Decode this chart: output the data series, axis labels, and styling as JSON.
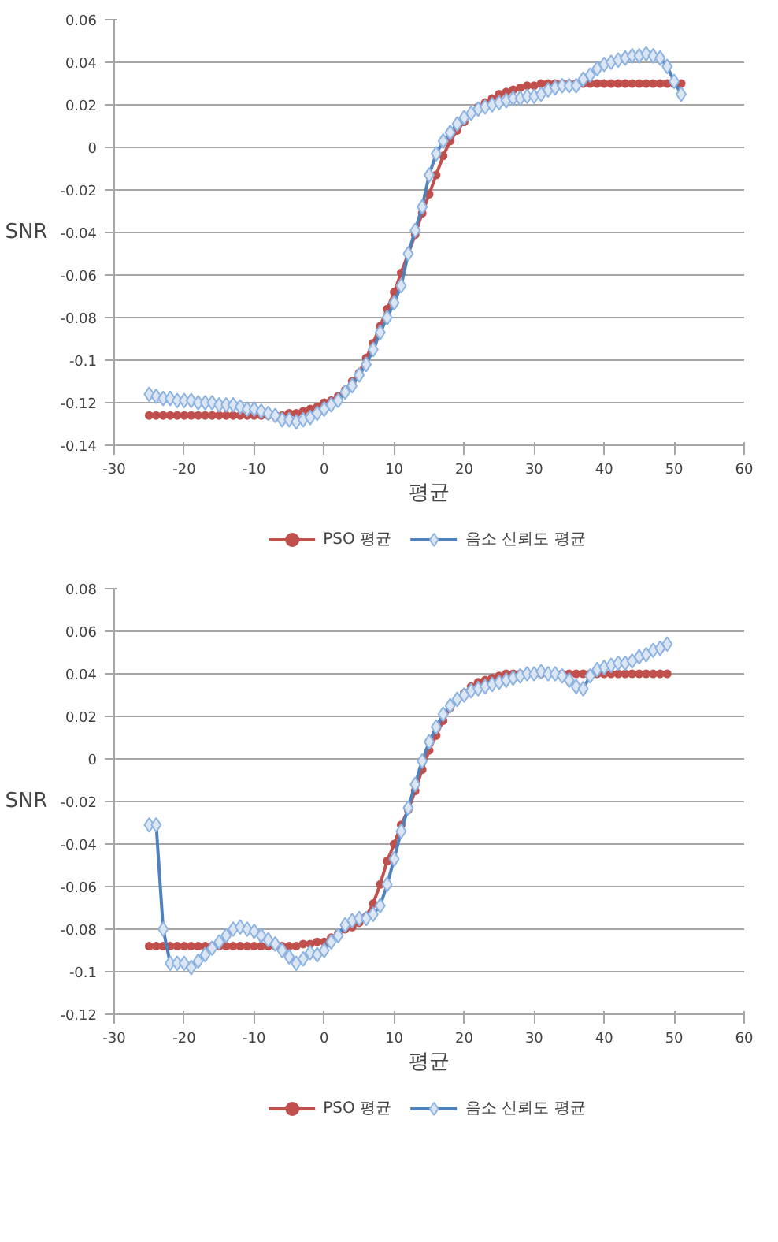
{
  "chart_data": [
    {
      "type": "line",
      "xlabel": "평균",
      "ylabel": "SNR",
      "xlim": [
        -30,
        60
      ],
      "ylim": [
        -0.14,
        0.06
      ],
      "xticks": [
        -30,
        -20,
        -10,
        0,
        10,
        20,
        30,
        40,
        50,
        60
      ],
      "yticks": [
        -0.14,
        -0.12,
        -0.1,
        -0.08,
        -0.06,
        -0.04,
        -0.02,
        0,
        0.02,
        0.04,
        0.06
      ],
      "grid": "y",
      "legend": "bottom",
      "x": [
        -25,
        -24,
        -23,
        -22,
        -21,
        -20,
        -19,
        -18,
        -17,
        -16,
        -15,
        -14,
        -13,
        -12,
        -11,
        -10,
        -9,
        -8,
        -7,
        -6,
        -5,
        -4,
        -3,
        -2,
        -1,
        0,
        1,
        2,
        3,
        4,
        5,
        6,
        7,
        8,
        9,
        10,
        11,
        12,
        13,
        14,
        15,
        16,
        17,
        18,
        19,
        20,
        21,
        22,
        23,
        24,
        25,
        26,
        27,
        28,
        29,
        30,
        31,
        32,
        33,
        34,
        35,
        36,
        37,
        38,
        39,
        40,
        41,
        42,
        43,
        44,
        45,
        46,
        47,
        48,
        49,
        50,
        51
      ],
      "series": [
        {
          "name": "PSO 평균",
          "color": "#c0504d",
          "marker": "circle",
          "values": [
            -0.126,
            -0.126,
            -0.126,
            -0.126,
            -0.126,
            -0.126,
            -0.126,
            -0.126,
            -0.126,
            -0.126,
            -0.126,
            -0.126,
            -0.126,
            -0.126,
            -0.126,
            -0.126,
            -0.126,
            -0.126,
            -0.126,
            -0.126,
            -0.125,
            -0.125,
            -0.124,
            -0.123,
            -0.122,
            -0.12,
            -0.119,
            -0.117,
            -0.114,
            -0.11,
            -0.106,
            -0.099,
            -0.092,
            -0.084,
            -0.076,
            -0.068,
            -0.059,
            -0.05,
            -0.041,
            -0.031,
            -0.022,
            -0.013,
            -0.004,
            0.003,
            0.008,
            0.012,
            0.016,
            0.019,
            0.021,
            0.023,
            0.025,
            0.026,
            0.027,
            0.028,
            0.029,
            0.029,
            0.03,
            0.03,
            0.03,
            0.03,
            0.03,
            0.03,
            0.03,
            0.03,
            0.03,
            0.03,
            0.03,
            0.03,
            0.03,
            0.03,
            0.03,
            0.03,
            0.03,
            0.03,
            0.03,
            0.03,
            0.03
          ]
        },
        {
          "name": "음소 신뢰도 평균",
          "color": "#4f81bd",
          "marker": "diamond",
          "values": [
            -0.116,
            -0.117,
            -0.118,
            -0.118,
            -0.119,
            -0.119,
            -0.119,
            -0.12,
            -0.12,
            -0.12,
            -0.121,
            -0.121,
            -0.121,
            -0.122,
            -0.123,
            -0.123,
            -0.124,
            -0.125,
            -0.126,
            -0.128,
            -0.128,
            -0.129,
            -0.128,
            -0.127,
            -0.125,
            -0.123,
            -0.121,
            -0.119,
            -0.115,
            -0.112,
            -0.107,
            -0.102,
            -0.095,
            -0.087,
            -0.08,
            -0.073,
            -0.065,
            -0.05,
            -0.039,
            -0.028,
            -0.013,
            -0.003,
            0.003,
            0.007,
            0.011,
            0.014,
            0.016,
            0.018,
            0.019,
            0.02,
            0.021,
            0.022,
            0.023,
            0.023,
            0.024,
            0.024,
            0.025,
            0.027,
            0.028,
            0.029,
            0.029,
            0.029,
            0.032,
            0.034,
            0.037,
            0.039,
            0.04,
            0.041,
            0.042,
            0.043,
            0.043,
            0.044,
            0.043,
            0.042,
            0.038,
            0.031,
            0.025
          ]
        }
      ]
    },
    {
      "type": "line",
      "xlabel": "평균",
      "ylabel": "SNR",
      "xlim": [
        -30,
        60
      ],
      "ylim": [
        -0.12,
        0.08
      ],
      "xticks": [
        -30,
        -20,
        -10,
        0,
        10,
        20,
        30,
        40,
        50,
        60
      ],
      "yticks": [
        -0.12,
        -0.1,
        -0.08,
        -0.06,
        -0.04,
        -0.02,
        0,
        0.02,
        0.04,
        0.06,
        0.08
      ],
      "grid": "y",
      "legend": "bottom",
      "x": [
        -25,
        -24,
        -23,
        -22,
        -21,
        -20,
        -19,
        -18,
        -17,
        -16,
        -15,
        -14,
        -13,
        -12,
        -11,
        -10,
        -9,
        -8,
        -7,
        -6,
        -5,
        -4,
        -3,
        -2,
        -1,
        0,
        1,
        2,
        3,
        4,
        5,
        6,
        7,
        8,
        9,
        10,
        11,
        12,
        13,
        14,
        15,
        16,
        17,
        18,
        19,
        20,
        21,
        22,
        23,
        24,
        25,
        26,
        27,
        28,
        29,
        30,
        31,
        32,
        33,
        34,
        35,
        36,
        37,
        38,
        39,
        40,
        41,
        42,
        43,
        44,
        45,
        46,
        47,
        48,
        49
      ],
      "series": [
        {
          "name": "PSO 평균",
          "color": "#c0504d",
          "marker": "circle",
          "values": [
            -0.088,
            -0.088,
            -0.088,
            -0.088,
            -0.088,
            -0.088,
            -0.088,
            -0.088,
            -0.088,
            -0.088,
            -0.088,
            -0.088,
            -0.088,
            -0.088,
            -0.088,
            -0.088,
            -0.088,
            -0.088,
            -0.088,
            -0.088,
            -0.088,
            -0.088,
            -0.087,
            -0.087,
            -0.086,
            -0.086,
            -0.084,
            -0.082,
            -0.08,
            -0.079,
            -0.077,
            -0.074,
            -0.068,
            -0.059,
            -0.048,
            -0.04,
            -0.031,
            -0.024,
            -0.015,
            -0.005,
            0.004,
            0.011,
            0.018,
            0.024,
            0.028,
            0.031,
            0.034,
            0.036,
            0.037,
            0.038,
            0.039,
            0.04,
            0.04,
            0.04,
            0.04,
            0.04,
            0.04,
            0.04,
            0.04,
            0.04,
            0.04,
            0.04,
            0.04,
            0.04,
            0.04,
            0.04,
            0.04,
            0.04,
            0.04,
            0.04,
            0.04,
            0.04,
            0.04,
            0.04,
            0.04
          ]
        },
        {
          "name": "음소 신뢰도 평균",
          "color": "#4f81bd",
          "marker": "diamond",
          "values": [
            -0.031,
            -0.031,
            -0.08,
            -0.096,
            -0.096,
            -0.096,
            -0.098,
            -0.095,
            -0.092,
            -0.089,
            -0.086,
            -0.083,
            -0.08,
            -0.079,
            -0.08,
            -0.081,
            -0.083,
            -0.085,
            -0.087,
            -0.09,
            -0.093,
            -0.096,
            -0.094,
            -0.091,
            -0.092,
            -0.09,
            -0.086,
            -0.083,
            -0.078,
            -0.076,
            -0.075,
            -0.075,
            -0.073,
            -0.069,
            -0.059,
            -0.047,
            -0.034,
            -0.023,
            -0.012,
            -0.001,
            0.008,
            0.015,
            0.021,
            0.025,
            0.028,
            0.03,
            0.032,
            0.033,
            0.034,
            0.035,
            0.036,
            0.037,
            0.038,
            0.039,
            0.04,
            0.04,
            0.041,
            0.04,
            0.04,
            0.039,
            0.037,
            0.034,
            0.033,
            0.039,
            0.042,
            0.043,
            0.044,
            0.045,
            0.045,
            0.046,
            0.048,
            0.049,
            0.051,
            0.052,
            0.054
          ]
        }
      ]
    }
  ]
}
